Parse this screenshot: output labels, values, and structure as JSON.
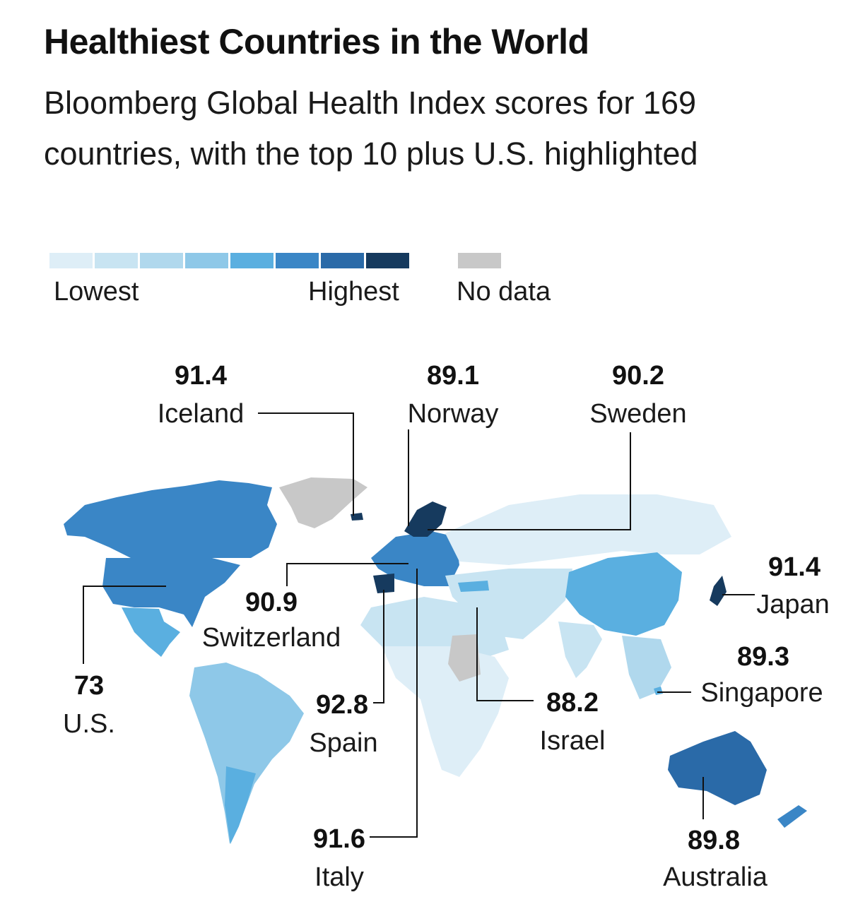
{
  "title": "Healthiest Countries in the World",
  "subtitle": "Bloomberg Global Health Index scores for 169 countries, with the top 10 plus U.S. highlighted",
  "legend": {
    "scale_colors": [
      "#deeef7",
      "#c8e4f2",
      "#b0d8ed",
      "#8ec8e8",
      "#5aafe0",
      "#3a86c6",
      "#2a6aa8",
      "#163a5e"
    ],
    "nodata_color": "#c8c8c8",
    "low_label": "Lowest",
    "high_label": "Highest",
    "nodata_label": "No data"
  },
  "callouts": {
    "iceland": {
      "value": "91.4",
      "name": "Iceland"
    },
    "norway": {
      "value": "89.1",
      "name": "Norway"
    },
    "sweden": {
      "value": "90.2",
      "name": "Sweden"
    },
    "japan": {
      "value": "91.4",
      "name": "Japan"
    },
    "switzerland": {
      "value": "90.9",
      "name": "Switzerland"
    },
    "singapore": {
      "value": "89.3",
      "name": "Singapore"
    },
    "us": {
      "value": "73",
      "name": "U.S."
    },
    "spain": {
      "value": "92.8",
      "name": "Spain"
    },
    "israel": {
      "value": "88.2",
      "name": "Israel"
    },
    "italy": {
      "value": "91.6",
      "name": "Italy"
    },
    "australia": {
      "value": "89.8",
      "name": "Australia"
    }
  }
}
